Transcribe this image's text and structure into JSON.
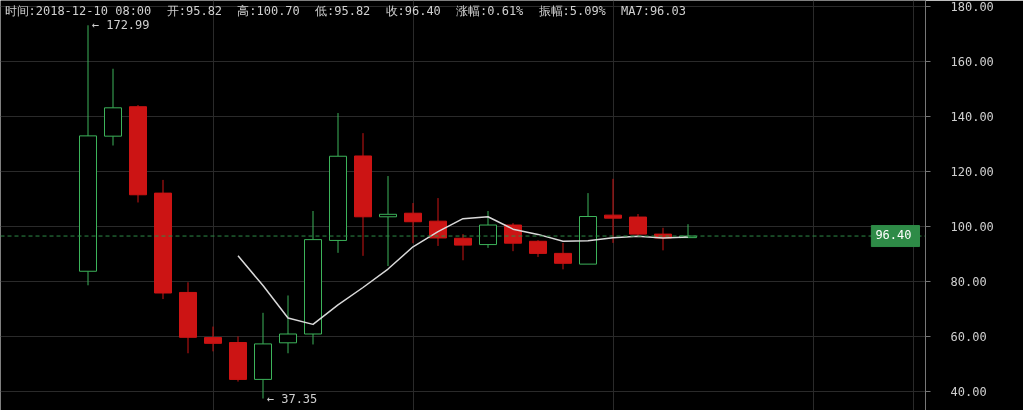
{
  "chart_data": {
    "type": "candlestick",
    "categories": [
      null,
      null,
      null,
      null,
      null,
      null,
      null,
      null,
      null,
      null,
      null,
      null,
      null,
      null,
      null,
      null,
      null,
      null,
      null,
      null,
      null,
      null,
      null,
      null,
      null,
      null,
      null,
      null,
      null,
      null,
      null,
      null,
      null,
      null,
      null,
      null,
      null
    ],
    "ohlc": [
      null,
      null,
      null,
      [
        83.6,
        172.99,
        78.5,
        132.8
      ],
      [
        132.7,
        157.2,
        129.3,
        143.0
      ],
      [
        143.4,
        144.0,
        108.6,
        111.4
      ],
      [
        112.0,
        116.8,
        73.5,
        75.7
      ],
      [
        75.9,
        79.6,
        53.8,
        59.6
      ],
      [
        59.5,
        63.5,
        54.5,
        57.4
      ],
      [
        57.7,
        59.9,
        43.5,
        44.3
      ],
      [
        44.3,
        68.5,
        37.35,
        57.2
      ],
      [
        57.6,
        74.8,
        53.8,
        60.8
      ],
      [
        60.8,
        105.5,
        57.0,
        95.1
      ],
      [
        94.8,
        141.1,
        90.3,
        125.4
      ],
      [
        125.5,
        133.8,
        89.2,
        103.4
      ],
      [
        103.4,
        118.2,
        85.5,
        104.3
      ],
      [
        104.7,
        108.4,
        93.8,
        101.6
      ],
      [
        101.8,
        110.2,
        92.8,
        95.7
      ],
      [
        95.6,
        97.1,
        87.6,
        93.1
      ],
      [
        93.3,
        105.5,
        92.1,
        100.4
      ],
      [
        100.4,
        101.1,
        90.9,
        93.8
      ],
      [
        94.5,
        94.9,
        88.8,
        90.1
      ],
      [
        90.1,
        93.9,
        84.3,
        86.5
      ],
      [
        86.2,
        112.0,
        86.2,
        103.5
      ],
      [
        104.0,
        117.2,
        93.9,
        102.9
      ],
      [
        103.3,
        104.4,
        96.5,
        97.1
      ],
      [
        97.1,
        99.4,
        91.2,
        95.7
      ],
      [
        95.82,
        100.7,
        95.82,
        96.4
      ],
      null,
      null,
      null,
      null,
      null,
      null,
      null,
      null,
      null
    ],
    "colors": [
      null,
      null,
      null,
      "#3cb35a",
      "#3cb35a",
      "#cc1414",
      "#cc1414",
      "#cc1414",
      "#cc1414",
      "#cc1414",
      "#3cb35a",
      "#3cb35a",
      "#3cb35a",
      "#3cb35a",
      "#cc1414",
      "#3cb35a",
      "#cc1414",
      "#cc1414",
      "#cc1414",
      "#3cb35a",
      "#cc1414",
      "#cc1414",
      "#cc1414",
      "#3cb35a",
      "#cc1414",
      "#cc1414",
      "#cc1414",
      "#3cb35a",
      null,
      null,
      null,
      null,
      null,
      null,
      null,
      null,
      null
    ],
    "series": [
      {
        "type": "line",
        "color": "#d9d9d9",
        "values": [
          null,
          null,
          null,
          null,
          null,
          null,
          null,
          null,
          null,
          89.2,
          78.4,
          66.6,
          64.3,
          71.4,
          77.7,
          84.4,
          92.5,
          98.0,
          102.7,
          103.4,
          98.9,
          97.0,
          94.5,
          94.7,
          95.8,
          96.3,
          95.7,
          96.03,
          null,
          null,
          null,
          null,
          null,
          null,
          null,
          null,
          null
        ]
      }
    ],
    "ylim": [
      33,
      182
    ],
    "yticks": [
      {
        "value": 40,
        "label": "40.00"
      },
      {
        "value": 60,
        "label": "60.00"
      },
      {
        "value": 80,
        "label": "80.00"
      },
      {
        "value": 100,
        "label": "100.00"
      },
      {
        "value": 120,
        "label": "120.00"
      },
      {
        "value": 140,
        "label": "140.00"
      },
      {
        "value": 160,
        "label": "160.00"
      },
      {
        "value": 180,
        "label": "180.00"
      }
    ],
    "tick_labels": "y",
    "grid": true,
    "ref_lines": [
      {
        "axis": "y",
        "value": 96.4,
        "label": "96.40",
        "color": "#2e8b47",
        "line_style": "dashed"
      }
    ],
    "annotations": [
      "时间:2018-12-10 08:00",
      "开:95.82",
      "高:100.70",
      "低:95.82",
      "收:96.40",
      "涨幅:0.61%",
      "振幅:5.09%",
      "MA7:96.03",
      "← 172.99",
      "← 37.35"
    ]
  }
}
